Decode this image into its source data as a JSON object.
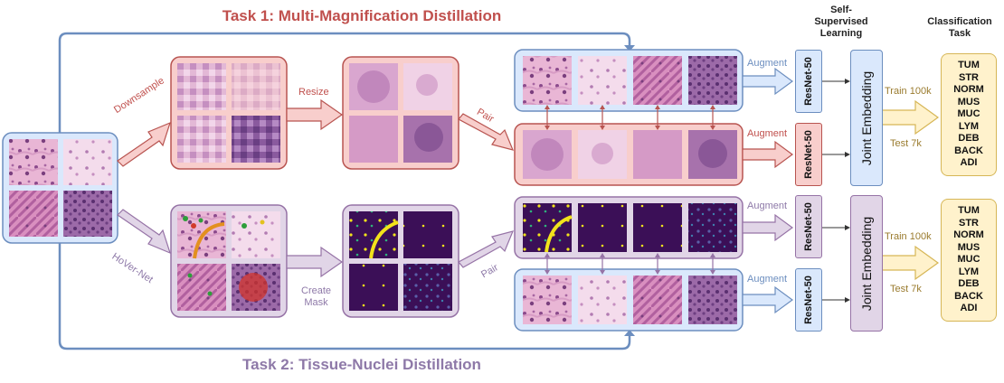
{
  "titles": {
    "task1": "Task 1: Multi-Magnification Distillation",
    "task2": "Task 2: Tissue-Nuclei Distillation"
  },
  "headers": {
    "ssl": "Self-\nSupervised\nLearning",
    "classification": "Classification\nTask"
  },
  "labels": {
    "downsample": "Downsample",
    "resize": "Resize",
    "pair": "Pair",
    "augment": "Augment",
    "hovernet": "HoVer-Net",
    "create_mask": "Create\nMask",
    "train": "Train 100k",
    "test": "Test 7k"
  },
  "encoder": "ResNet-50",
  "joint": "Joint Embedding",
  "classes": [
    "TUM",
    "STR",
    "NORM",
    "MUS",
    "MUC",
    "LYM",
    "DEB",
    "BACK",
    "ADI"
  ],
  "colors": {
    "blue_fill": "#dae8fc",
    "blue_stroke": "#6c8ebf",
    "red_fill": "#f8cecc",
    "red_stroke": "#b85450",
    "purple_fill": "#e1d5e7",
    "purple_stroke": "#9673a6",
    "yellow_fill": "#fff2cc",
    "yellow_stroke": "#d6b656"
  }
}
